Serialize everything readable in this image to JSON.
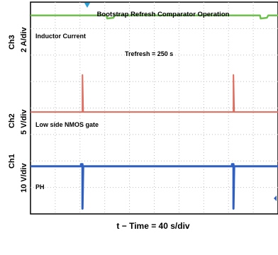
{
  "chart_data": {
    "type": "line",
    "title": "Bootstrap Refresh Comparator Operation",
    "annotation": "Trefresh = 250   s",
    "xlabel": "t − Time = 40   s/div",
    "x_divisions": 10,
    "y_divisions": 8,
    "grid": true,
    "background": "#ffffff",
    "series": [
      {
        "name": "Inductor Current",
        "channel_label": "Ch3",
        "scale_label": "2 A/div",
        "color": "#6cc24a",
        "baseline_div": 0.5,
        "events": [
          {
            "x_div": 3.1,
            "type": "dip",
            "amplitude_div": 0.12,
            "width_div": 0.25
          },
          {
            "x_div": 9.3,
            "type": "dip",
            "amplitude_div": 0.12,
            "width_div": 0.25
          }
        ]
      },
      {
        "name": "Low side NMOS gate",
        "channel_label": "Ch2",
        "scale_label": "5 V/div",
        "color": "#e06a5c",
        "baseline_div": 4.15,
        "events": [
          {
            "x_div": 2.1,
            "type": "spike",
            "amplitude_div": 1.4
          },
          {
            "x_div": 8.2,
            "type": "spike",
            "amplitude_div": 1.4
          }
        ]
      },
      {
        "name": "PH",
        "channel_label": "Ch1",
        "scale_label": "10 V/div",
        "color": "#2e5fc2",
        "baseline_div": 6.2,
        "events": [
          {
            "x_div": 2.1,
            "type": "drop",
            "amplitude_div": 1.6
          },
          {
            "x_div": 8.2,
            "type": "drop",
            "amplitude_div": 1.6
          }
        ]
      }
    ]
  },
  "colors": {
    "trigger_marker": "#2aa0d8",
    "trace_marker": "#2e5fc2"
  }
}
